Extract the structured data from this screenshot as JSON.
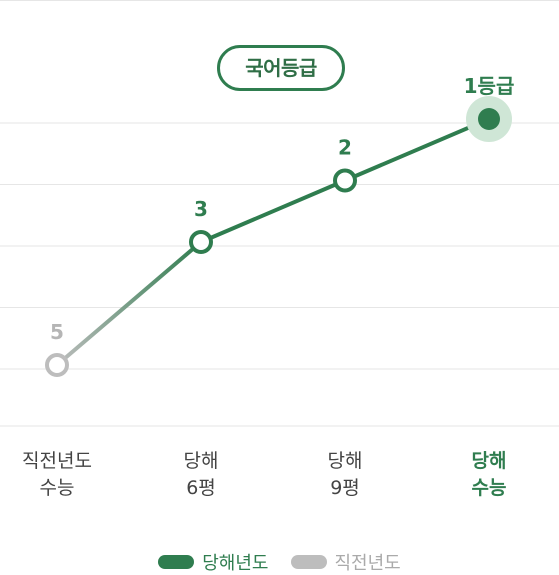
{
  "chart_data": {
    "type": "line",
    "title": "국어등급",
    "categories": [
      [
        "직전년도",
        "수능"
      ],
      [
        "당해",
        "6평"
      ],
      [
        "당해",
        "9평"
      ],
      [
        "당해",
        "수능"
      ]
    ],
    "values": [
      5,
      3,
      2,
      1
    ],
    "point_labels": [
      "5",
      "3",
      "2",
      "1등급"
    ],
    "y_inverted": true,
    "ylim": [
      1,
      6
    ],
    "grid": true,
    "legend_position": "bottom",
    "legend": [
      {
        "name": "당해년도",
        "color": "#2f7d4f"
      },
      {
        "name": "직전년도",
        "color": "#bdbdbd"
      }
    ],
    "colors": {
      "current": "#2f7d4f",
      "previous": "#bdbdbd",
      "highlight": "#cfe6d6"
    }
  }
}
